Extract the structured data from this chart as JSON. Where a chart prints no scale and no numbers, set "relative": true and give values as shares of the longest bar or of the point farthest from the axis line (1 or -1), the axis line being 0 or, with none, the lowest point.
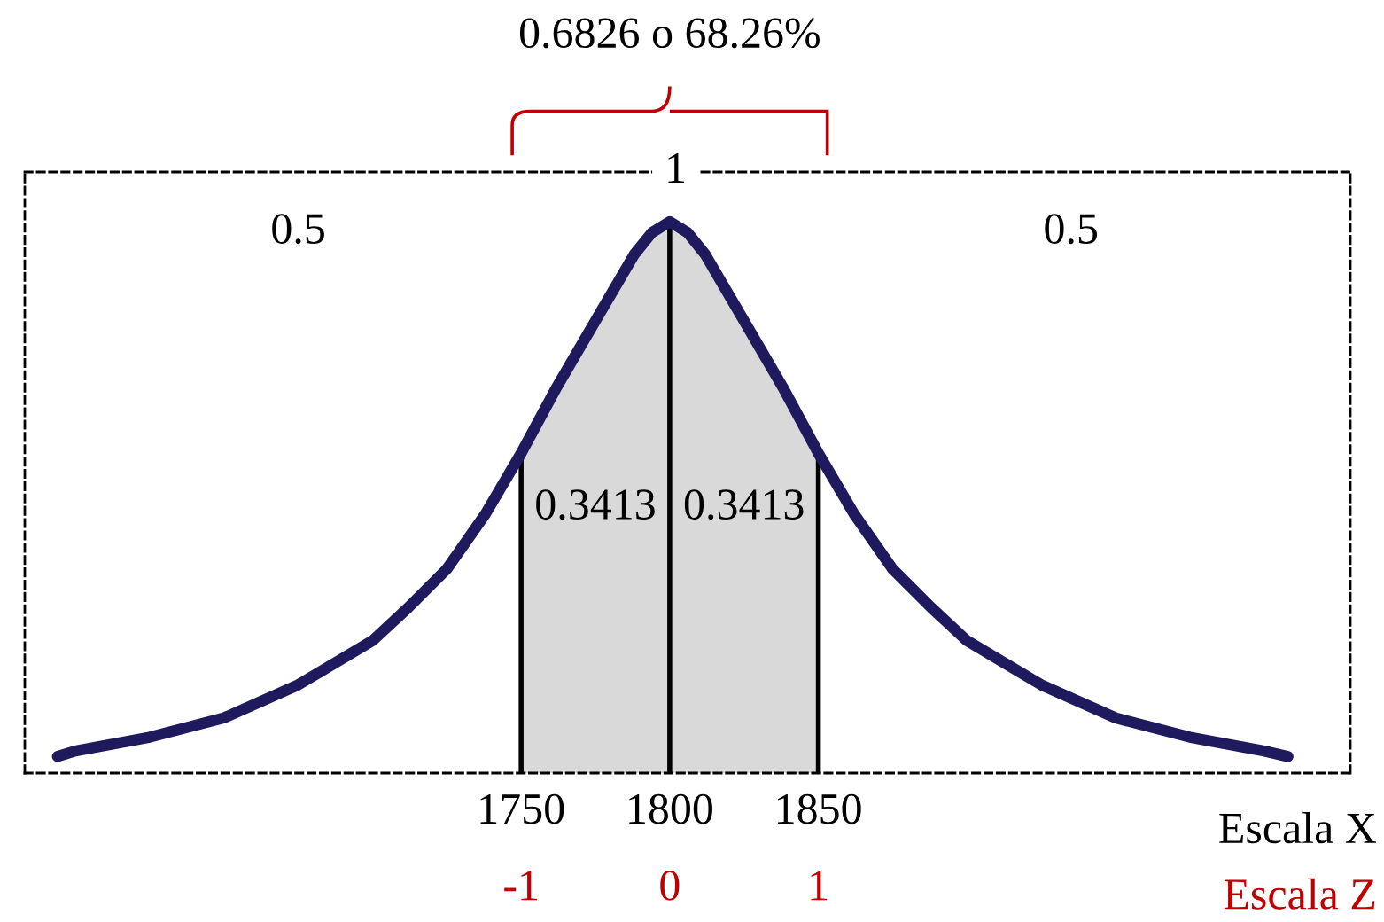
{
  "chart_data": {
    "type": "line",
    "relative": true,
    "x": [
      1594,
      1600,
      1625,
      1650,
      1675,
      1700,
      1712,
      1725,
      1738,
      1750,
      1762,
      1775,
      1788,
      1794,
      1800,
      1806,
      1812,
      1825,
      1838,
      1850,
      1862,
      1875,
      1888,
      1900,
      1925,
      1950,
      1975,
      2000,
      2008
    ],
    "series": [
      {
        "color": "#1f1a5e",
        "values": [
          0.03,
          0.04,
          0.065,
          0.1,
          0.16,
          0.24,
          0.3,
          0.37,
          0.47,
          0.58,
          0.7,
          0.82,
          0.94,
          0.98,
          1,
          0.98,
          0.94,
          0.82,
          0.7,
          0.58,
          0.47,
          0.37,
          0.3,
          0.24,
          0.16,
          0.1,
          0.065,
          0.04,
          0.03
        ]
      },
      {
        "type": "area",
        "color": "#d9d9d9",
        "x": [
          1750,
          1762,
          1775,
          1788,
          1794,
          1800,
          1806,
          1812,
          1825,
          1838,
          1850
        ],
        "values": [
          0.58,
          0.7,
          0.82,
          0.94,
          0.98,
          1,
          0.98,
          0.94,
          0.82,
          0.7,
          0.58
        ]
      }
    ],
    "xlim": [
      1583,
      2029
    ],
    "xticks": [
      1750,
      1800,
      1850
    ],
    "xlabel": "Escala X",
    "x2lim": [
      -4.34,
      4.58
    ],
    "x2ticks": [
      -1,
      0,
      1
    ],
    "x2label": "Escala Z",
    "ref_lines": [
      {
        "axis": "x",
        "value": 1750,
        "color": "#000000"
      },
      {
        "axis": "x",
        "value": 1800,
        "color": "#000000"
      },
      {
        "axis": "x",
        "value": 1850,
        "color": "#000000"
      }
    ],
    "annotations": [
      "0.6826 o 68.26%",
      "1",
      "0.5",
      "0.5",
      "0.3413",
      "0.3413"
    ],
    "grid": false,
    "marker": "none",
    "line_style": "solid"
  }
}
